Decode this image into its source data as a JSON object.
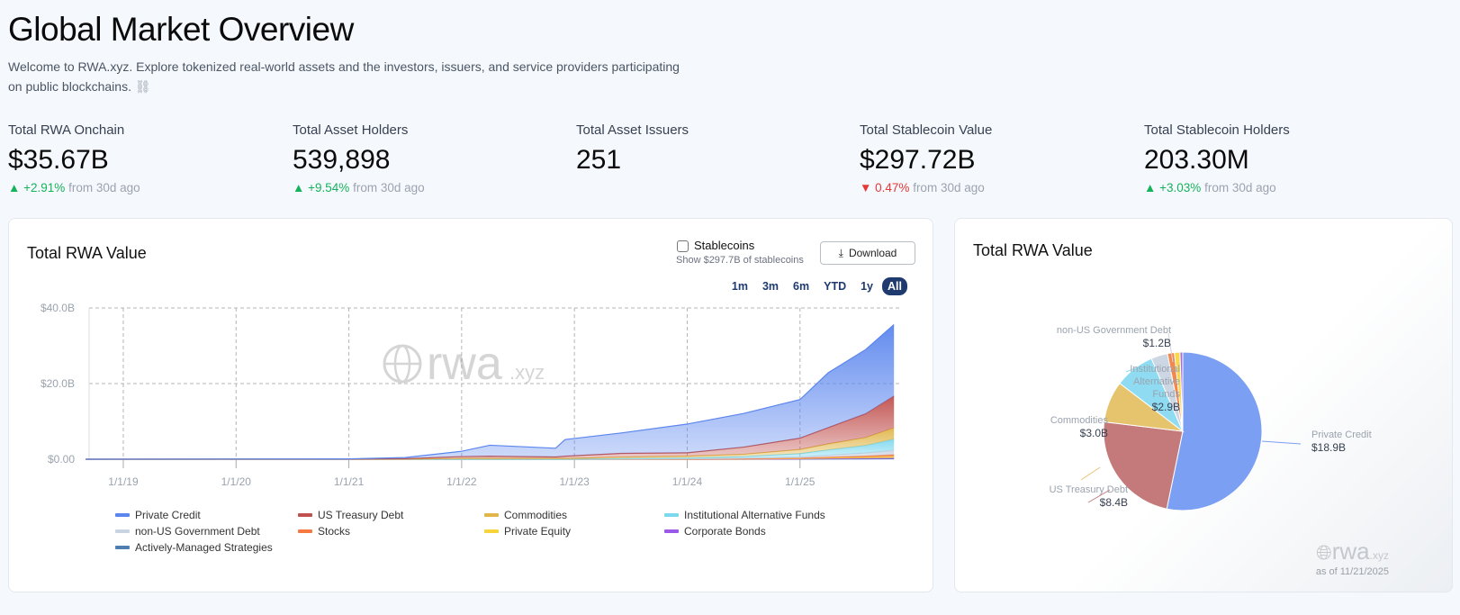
{
  "header": {
    "title": "Global Market Overview",
    "description": "Welcome to RWA.xyz. Explore tokenized real-world assets and the investors, issuers, and service providers participating on public blockchains.",
    "description_icon": "link-icon"
  },
  "stats": [
    {
      "label": "Total RWA Onchain",
      "value": "$35.67B",
      "change": "+2.91%",
      "direction": "up",
      "suffix": "from 30d ago"
    },
    {
      "label": "Total Asset Holders",
      "value": "539,898",
      "change": "+9.54%",
      "direction": "up",
      "suffix": "from 30d ago"
    },
    {
      "label": "Total Asset Issuers",
      "value": "251"
    },
    {
      "label": "Total Stablecoin Value",
      "value": "$297.72B",
      "change": "0.47%",
      "direction": "down",
      "suffix": "from 30d ago"
    },
    {
      "label": "Total Stablecoin Holders",
      "value": "203.30M",
      "change": "+3.03%",
      "direction": "up",
      "suffix": "from 30d ago"
    }
  ],
  "area_card": {
    "title": "Total RWA Value",
    "stablecoins_label": "Stablecoins",
    "stablecoins_checked": false,
    "stablecoins_sub": "Show $297.7B of stablecoins",
    "download_label": "Download",
    "ranges": [
      "1m",
      "3m",
      "6m",
      "YTD",
      "1y",
      "All"
    ],
    "active_range": "All",
    "watermark": "rwa",
    "watermark_suffix": ".xyz"
  },
  "pie_card": {
    "title": "Total RWA Value",
    "watermark": "rwa",
    "watermark_suffix": ".xyz",
    "as_of": "as of 11/21/2025"
  },
  "colors": {
    "up": "#16b35a",
    "down": "#e53935",
    "range_active": "#1e3a6e"
  },
  "chart_data": [
    {
      "type": "area",
      "stacked": true,
      "title": "Total RWA Value",
      "x_ticks": [
        "1/1/19",
        "1/1/20",
        "1/1/21",
        "1/1/22",
        "1/1/23",
        "1/1/24",
        "1/1/25"
      ],
      "y_ticks": [
        "$0.00",
        "$20.0B",
        "$40.0B"
      ],
      "ylim": [
        0,
        40
      ],
      "y_unit": "B USD",
      "grid": true,
      "legend": "bottom",
      "x": [
        "2018-09",
        "2021-01",
        "2021-07",
        "2022-01",
        "2022-04",
        "2022-11",
        "2022-12",
        "2023-06",
        "2024-01",
        "2024-07",
        "2025-01",
        "2025-04",
        "2025-08",
        "2025-11"
      ],
      "series": [
        {
          "name": "Private Credit",
          "color": "#5b86ee",
          "values": [
            0,
            0.05,
            0.3,
            1.4,
            2.9,
            2.3,
            4.4,
            5.4,
            7.6,
            8.9,
            10.2,
            14.5,
            17.0,
            18.9
          ]
        },
        {
          "name": "US Treasury Debt",
          "color": "#c0504d",
          "values": [
            0,
            0.03,
            0.1,
            0.5,
            0.6,
            0.4,
            0.6,
            1.0,
            0.9,
            1.9,
            3.0,
            4.3,
            6.3,
            8.4
          ]
        },
        {
          "name": "Commodities",
          "color": "#e0b64a",
          "values": [
            0,
            0.01,
            0.05,
            0.2,
            0.2,
            0.2,
            0.2,
            0.4,
            0.5,
            0.6,
            1.1,
            1.6,
            2.1,
            3.0
          ]
        },
        {
          "name": "Institutional Alternative Funds",
          "color": "#7dd8ef",
          "values": [
            0,
            0,
            0,
            0,
            0,
            0,
            0,
            0.1,
            0.2,
            0.4,
            0.9,
            1.4,
            2.0,
            2.9
          ]
        },
        {
          "name": "non-US Government Debt",
          "color": "#c9d3e2",
          "values": [
            0,
            0,
            0,
            0,
            0,
            0,
            0,
            0.05,
            0.1,
            0.2,
            0.3,
            0.5,
            0.8,
            1.2
          ]
        },
        {
          "name": "Stocks",
          "color": "#f47a42",
          "values": [
            0,
            0,
            0,
            0,
            0,
            0,
            0,
            0,
            0,
            0.05,
            0.1,
            0.2,
            0.3,
            0.5
          ]
        },
        {
          "name": "Private Equity",
          "color": "#f7d43b",
          "values": [
            0,
            0,
            0,
            0,
            0,
            0,
            0,
            0,
            0,
            0.05,
            0.1,
            0.2,
            0.3,
            0.4
          ]
        },
        {
          "name": "Corporate Bonds",
          "color": "#9b59e8",
          "values": [
            0,
            0,
            0,
            0,
            0,
            0,
            0,
            0,
            0,
            0,
            0.05,
            0.1,
            0.15,
            0.2
          ]
        },
        {
          "name": "Actively-Managed Strategies",
          "color": "#4e7fb0",
          "values": [
            0,
            0,
            0,
            0,
            0,
            0,
            0,
            0,
            0,
            0,
            0.02,
            0.05,
            0.08,
            0.1
          ]
        }
      ]
    },
    {
      "type": "pie",
      "title": "Total RWA Value",
      "slices": [
        {
          "name": "Private Credit",
          "value": 18.9,
          "label": "$18.9B",
          "color": "#7b9ff2"
        },
        {
          "name": "US Treasury Debt",
          "value": 8.4,
          "label": "$8.4B",
          "color": "#c47a7a"
        },
        {
          "name": "Commodities",
          "value": 3.0,
          "label": "$3.0B",
          "color": "#e6c46e"
        },
        {
          "name": "Institutional Alternative Funds",
          "value": 2.9,
          "label": "$2.9B",
          "color": "#8fdcf2"
        },
        {
          "name": "non-US Government Debt",
          "value": 1.2,
          "label": "$1.2B",
          "color": "#cdd7e4"
        },
        {
          "name": "Stocks",
          "value": 0.5,
          "color": "#f4874e"
        },
        {
          "name": "Private Equity",
          "value": 0.4,
          "color": "#f8d84a"
        },
        {
          "name": "Corporate Bonds",
          "value": 0.2,
          "color": "#a36ee8"
        }
      ]
    }
  ]
}
